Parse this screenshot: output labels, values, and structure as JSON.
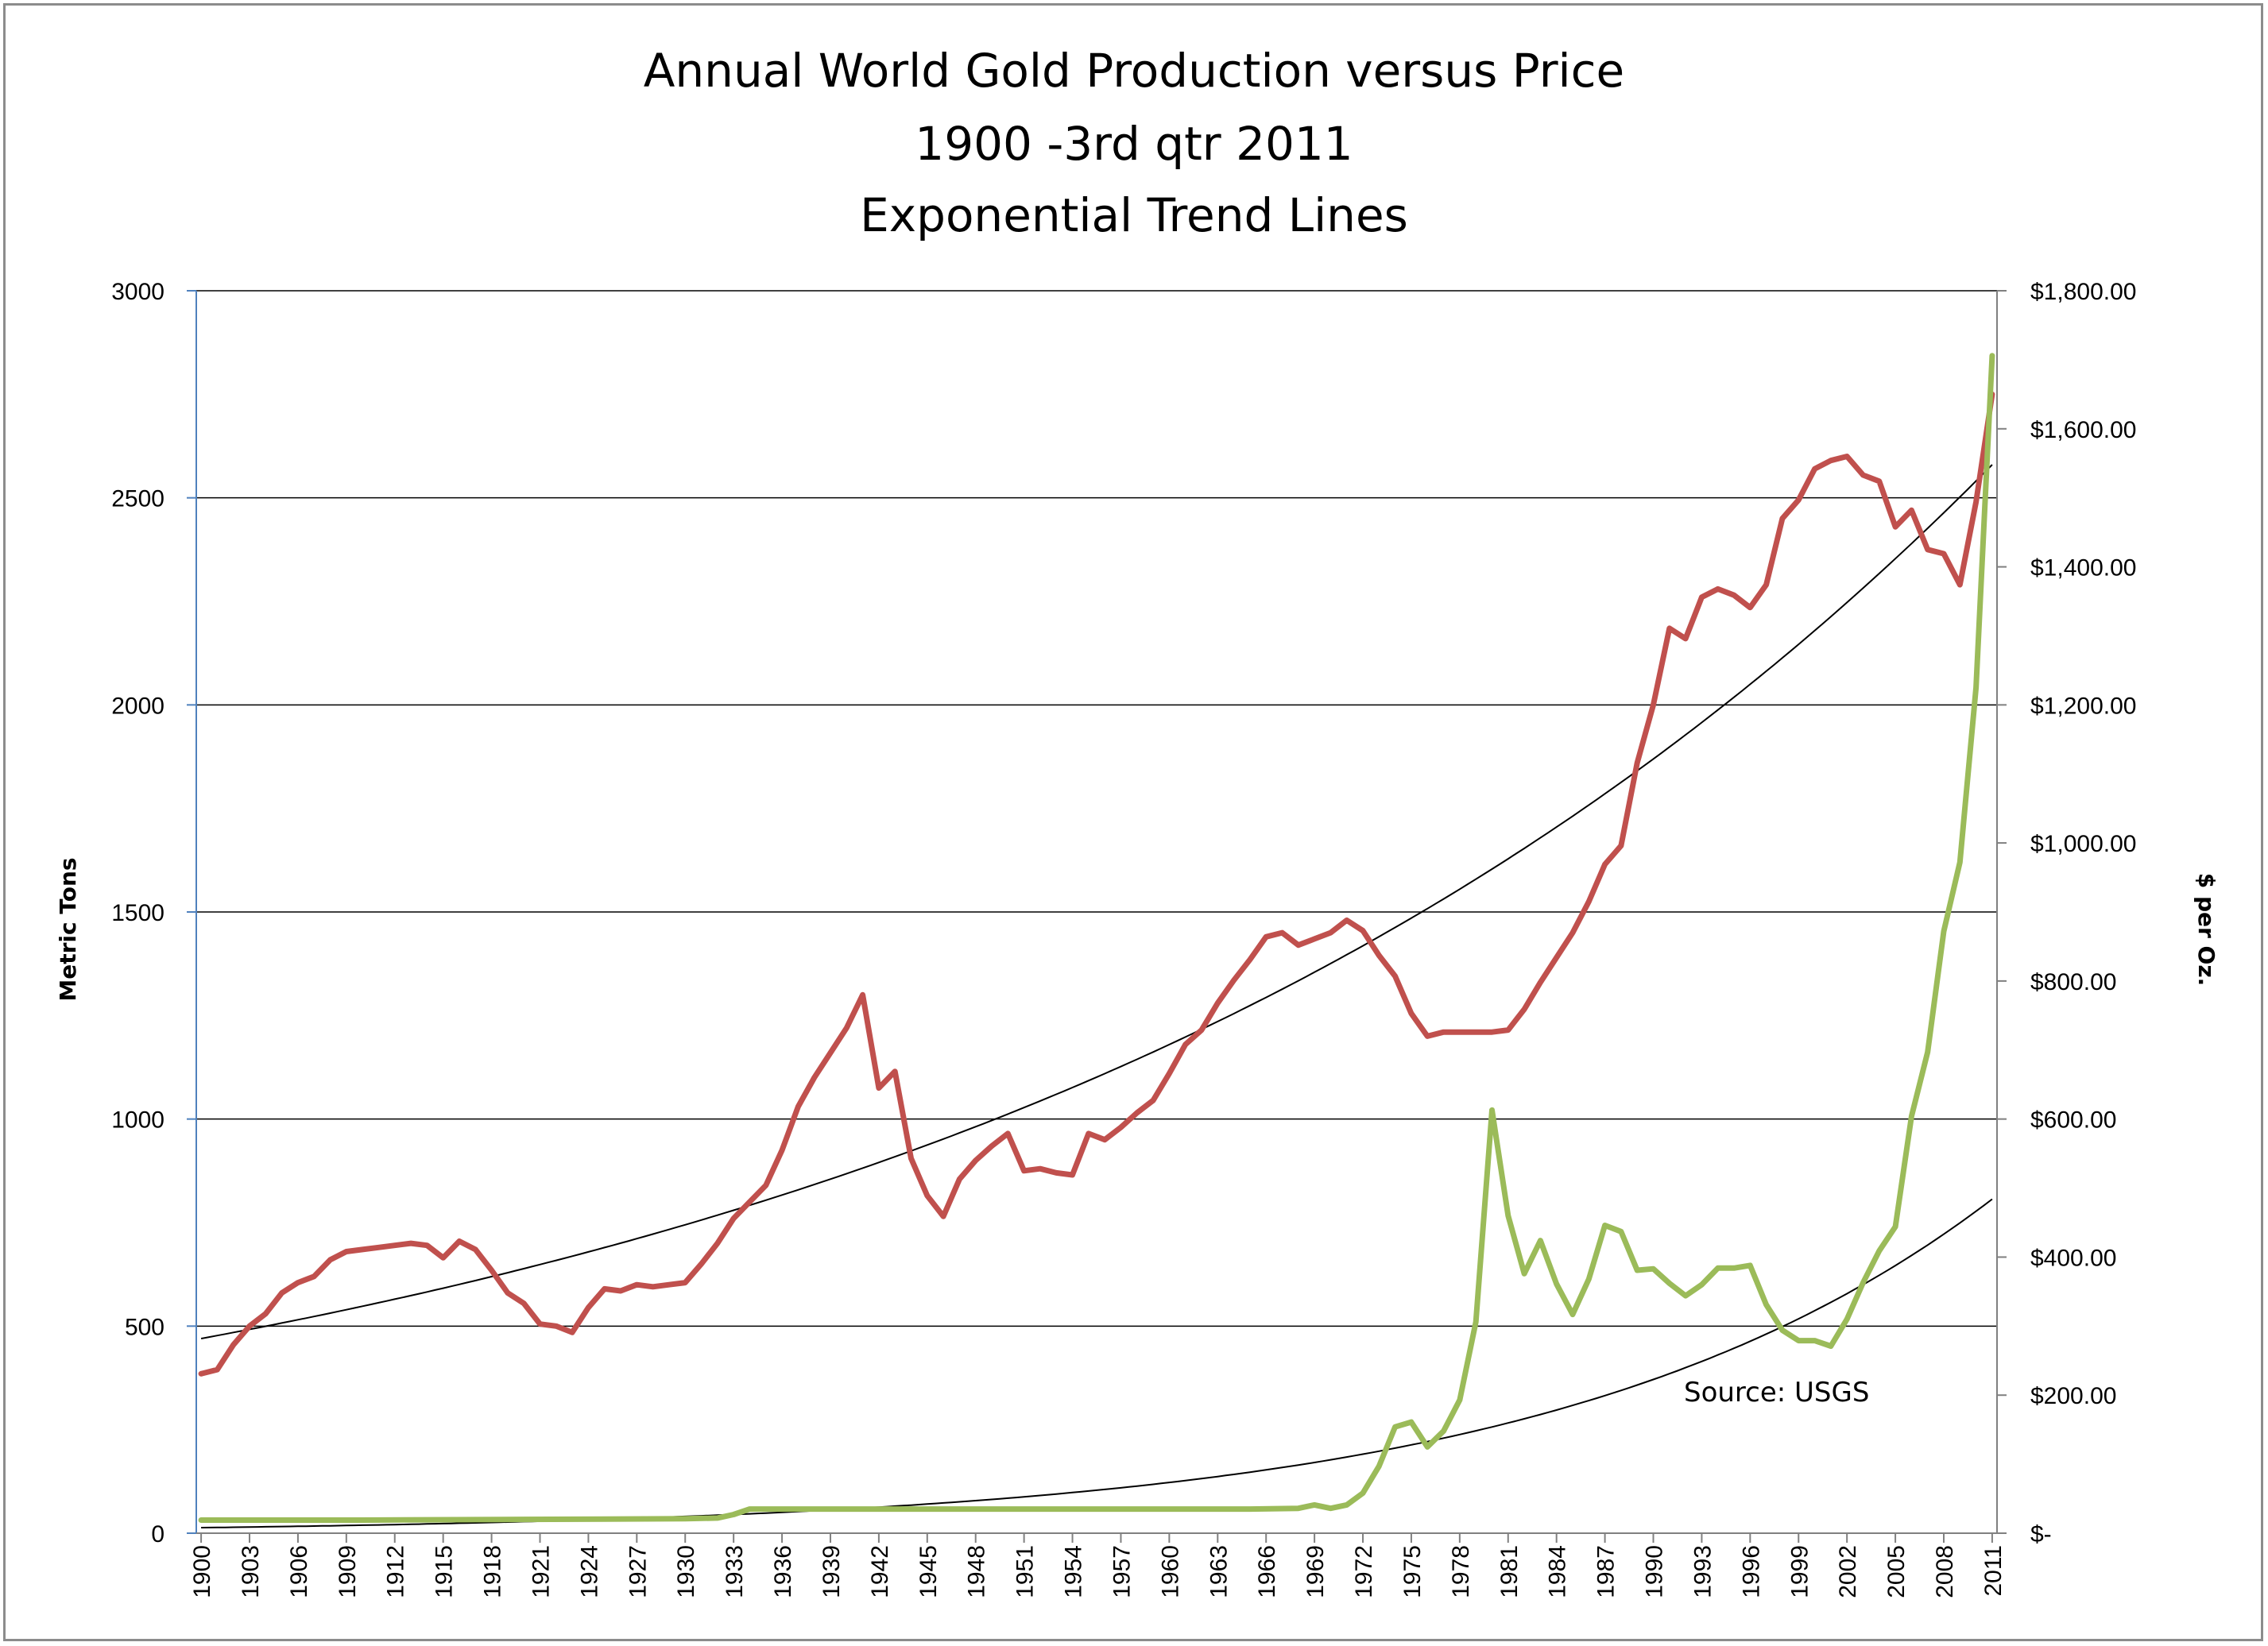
{
  "chart_data": {
    "type": "line",
    "title": [
      "Annual World Gold Production versus Price",
      "1900 -3rd qtr 2011",
      "Exponential Trend Lines"
    ],
    "ylabel_left": "Metric Tons",
    "ylabel_right": "$ per Oz.",
    "annotation": "Source:  USGS",
    "x_range": [
      1900,
      2011
    ],
    "x_ticks": [
      "1900",
      "1903",
      "1906",
      "1909",
      "1912",
      "1915",
      "1918",
      "1921",
      "1924",
      "1927",
      "1930",
      "1933",
      "1936",
      "1939",
      "1942",
      "1945",
      "1948",
      "1951",
      "1954",
      "1957",
      "1960",
      "1963",
      "1966",
      "1969",
      "1972",
      "1975",
      "1978",
      "1981",
      "1984",
      "1987",
      "1990",
      "1993",
      "1996",
      "1999",
      "2002",
      "2005",
      "2008",
      "2011"
    ],
    "y_left_range": [
      0,
      3000
    ],
    "y_left_ticks": [
      "0",
      "500",
      "1000",
      "1500",
      "2000",
      "2500",
      "3000"
    ],
    "y_right_range": [
      0,
      1800
    ],
    "y_right_ticks": [
      "$-",
      "$200.00",
      "$400.00",
      "$600.00",
      "$800.00",
      "$1,000.00",
      "$1,200.00",
      "$1,400.00",
      "$1,600.00",
      "$1,800.00"
    ],
    "grid": "horizontal",
    "colors": {
      "production": "#c0504d",
      "price": "#9bbb59",
      "trend": "#000000",
      "grid": "#000000",
      "left_axis": "#4f81bd"
    },
    "series": [
      {
        "axis": "left",
        "color": "#c0504d",
        "points": [
          [
            1900,
            385
          ],
          [
            1901,
            395
          ],
          [
            1902,
            455
          ],
          [
            1903,
            500
          ],
          [
            1904,
            530
          ],
          [
            1905,
            580
          ],
          [
            1906,
            605
          ],
          [
            1907,
            620
          ],
          [
            1908,
            660
          ],
          [
            1909,
            680
          ],
          [
            1910,
            685
          ],
          [
            1911,
            690
          ],
          [
            1912,
            695
          ],
          [
            1913,
            700
          ],
          [
            1914,
            695
          ],
          [
            1915,
            665
          ],
          [
            1916,
            705
          ],
          [
            1917,
            685
          ],
          [
            1918,
            635
          ],
          [
            1919,
            580
          ],
          [
            1920,
            555
          ],
          [
            1921,
            505
          ],
          [
            1922,
            500
          ],
          [
            1923,
            485
          ],
          [
            1924,
            545
          ],
          [
            1925,
            590
          ],
          [
            1926,
            585
          ],
          [
            1927,
            600
          ],
          [
            1928,
            595
          ],
          [
            1929,
            600
          ],
          [
            1930,
            605
          ],
          [
            1931,
            650
          ],
          [
            1932,
            700
          ],
          [
            1933,
            760
          ],
          [
            1934,
            800
          ],
          [
            1935,
            840
          ],
          [
            1936,
            925
          ],
          [
            1937,
            1030
          ],
          [
            1938,
            1100
          ],
          [
            1939,
            1160
          ],
          [
            1940,
            1220
          ],
          [
            1941,
            1300
          ],
          [
            1942,
            1075
          ],
          [
            1943,
            1115
          ],
          [
            1944,
            905
          ],
          [
            1945,
            815
          ],
          [
            1946,
            765
          ],
          [
            1947,
            855
          ],
          [
            1948,
            900
          ],
          [
            1949,
            935
          ],
          [
            1950,
            965
          ],
          [
            1951,
            875
          ],
          [
            1952,
            880
          ],
          [
            1953,
            870
          ],
          [
            1954,
            865
          ],
          [
            1955,
            965
          ],
          [
            1956,
            950
          ],
          [
            1957,
            980
          ],
          [
            1958,
            1015
          ],
          [
            1959,
            1045
          ],
          [
            1960,
            1110
          ],
          [
            1961,
            1180
          ],
          [
            1962,
            1215
          ],
          [
            1963,
            1280
          ],
          [
            1964,
            1335
          ],
          [
            1965,
            1385
          ],
          [
            1966,
            1440
          ],
          [
            1967,
            1450
          ],
          [
            1968,
            1420
          ],
          [
            1969,
            1435
          ],
          [
            1970,
            1450
          ],
          [
            1971,
            1480
          ],
          [
            1972,
            1455
          ],
          [
            1973,
            1395
          ],
          [
            1974,
            1345
          ],
          [
            1975,
            1255
          ],
          [
            1976,
            1200
          ],
          [
            1977,
            1210
          ],
          [
            1978,
            1210
          ],
          [
            1979,
            1210
          ],
          [
            1980,
            1210
          ],
          [
            1981,
            1215
          ],
          [
            1982,
            1265
          ],
          [
            1983,
            1330
          ],
          [
            1984,
            1390
          ],
          [
            1985,
            1450
          ],
          [
            1986,
            1525
          ],
          [
            1987,
            1615
          ],
          [
            1988,
            1660
          ],
          [
            1989,
            1860
          ],
          [
            1990,
            2000
          ],
          [
            1991,
            2185
          ],
          [
            1992,
            2160
          ],
          [
            1993,
            2260
          ],
          [
            1994,
            2280
          ],
          [
            1995,
            2265
          ],
          [
            1996,
            2235
          ],
          [
            1997,
            2290
          ],
          [
            1998,
            2450
          ],
          [
            1999,
            2495
          ],
          [
            2000,
            2570
          ],
          [
            2001,
            2590
          ],
          [
            2002,
            2600
          ],
          [
            2003,
            2555
          ],
          [
            2004,
            2540
          ],
          [
            2005,
            2430
          ],
          [
            2006,
            2470
          ],
          [
            2007,
            2375
          ],
          [
            2008,
            2365
          ],
          [
            2009,
            2290
          ],
          [
            2010,
            2490
          ],
          [
            2011,
            2750
          ]
        ]
      },
      {
        "axis": "right",
        "color": "#9bbb59",
        "points": [
          [
            1900,
            19
          ],
          [
            1910,
            19
          ],
          [
            1920,
            20
          ],
          [
            1930,
            21
          ],
          [
            1932,
            22
          ],
          [
            1933,
            27
          ],
          [
            1934,
            35
          ],
          [
            1935,
            35
          ],
          [
            1940,
            35
          ],
          [
            1950,
            35
          ],
          [
            1955,
            35
          ],
          [
            1960,
            35
          ],
          [
            1965,
            35
          ],
          [
            1968,
            36
          ],
          [
            1969,
            41
          ],
          [
            1970,
            36
          ],
          [
            1971,
            41
          ],
          [
            1972,
            58
          ],
          [
            1973,
            97
          ],
          [
            1974,
            154
          ],
          [
            1975,
            161
          ],
          [
            1976,
            125
          ],
          [
            1977,
            148
          ],
          [
            1978,
            193
          ],
          [
            1979,
            306
          ],
          [
            1980,
            613
          ],
          [
            1981,
            460
          ],
          [
            1982,
            376
          ],
          [
            1983,
            424
          ],
          [
            1984,
            361
          ],
          [
            1985,
            317
          ],
          [
            1986,
            368
          ],
          [
            1987,
            446
          ],
          [
            1988,
            437
          ],
          [
            1989,
            381
          ],
          [
            1990,
            383
          ],
          [
            1991,
            362
          ],
          [
            1992,
            344
          ],
          [
            1993,
            360
          ],
          [
            1994,
            384
          ],
          [
            1995,
            384
          ],
          [
            1996,
            388
          ],
          [
            1997,
            331
          ],
          [
            1998,
            294
          ],
          [
            1999,
            279
          ],
          [
            2000,
            279
          ],
          [
            2001,
            271
          ],
          [
            2002,
            310
          ],
          [
            2003,
            363
          ],
          [
            2004,
            409
          ],
          [
            2005,
            444
          ],
          [
            2006,
            604
          ],
          [
            2007,
            697
          ],
          [
            2008,
            872
          ],
          [
            2009,
            972
          ],
          [
            2010,
            1225
          ],
          [
            2011,
            1706
          ]
        ]
      }
    ],
    "trendlines": [
      {
        "axis": "left",
        "start": [
          1900,
          470
        ],
        "end": [
          2011,
          2580
        ]
      },
      {
        "axis": "right",
        "start": [
          1900,
          8
        ],
        "end": [
          2011,
          484
        ]
      }
    ]
  }
}
